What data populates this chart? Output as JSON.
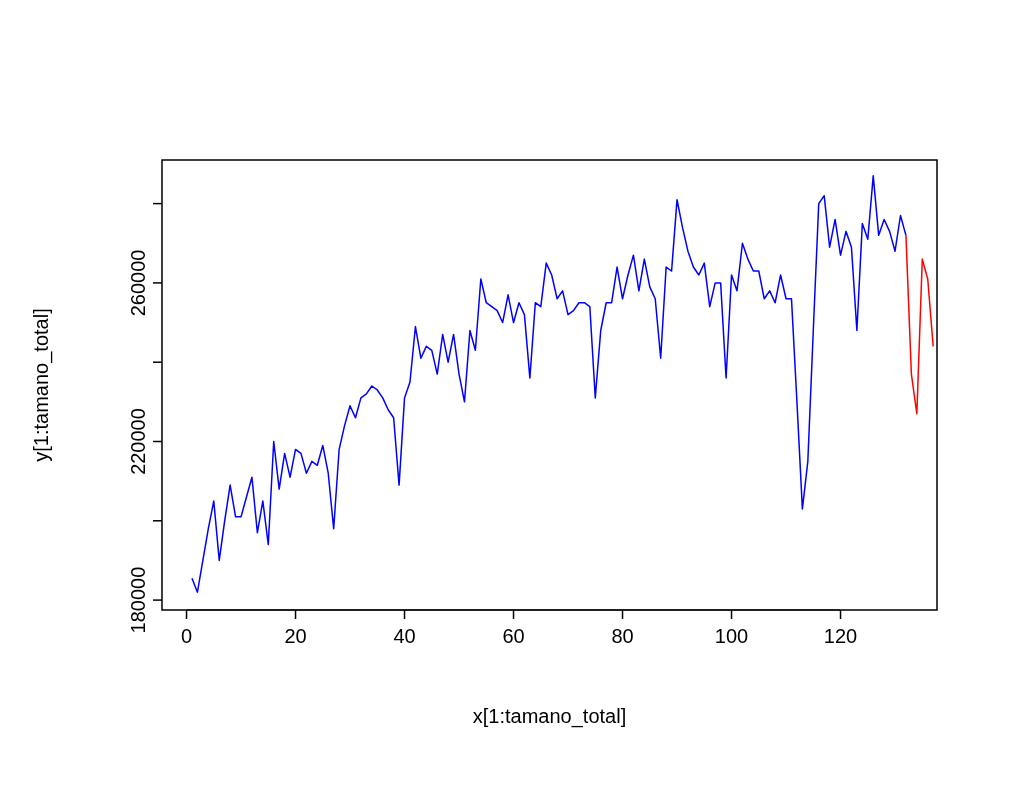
{
  "chart_data": {
    "type": "line",
    "xlabel": "x[1:tamano_total]",
    "ylabel": "y[1:tamano_total]",
    "xlim": [
      -4.5,
      137.7
    ],
    "ylim": [
      177500,
      291000
    ],
    "xticks": [
      0,
      20,
      40,
      60,
      80,
      100,
      120
    ],
    "yticks": [
      180000,
      {
        "value": 200000,
        "label": null
      },
      220000,
      {
        "value": 240000,
        "label": null
      },
      260000,
      {
        "value": 280000,
        "label": null
      }
    ],
    "grid": false,
    "series": [
      {
        "color": "#0000ff",
        "x": [
          1,
          2,
          3,
          4,
          5,
          6,
          7,
          8,
          9,
          10,
          11,
          12,
          13,
          14,
          15,
          16,
          17,
          18,
          19,
          20,
          21,
          22,
          23,
          24,
          25,
          26,
          27,
          28,
          29,
          30,
          31,
          32,
          33,
          34,
          35,
          36,
          37,
          38,
          39,
          40,
          41,
          42,
          43,
          44,
          45,
          46,
          47,
          48,
          49,
          50,
          51,
          52,
          53,
          54,
          55,
          56,
          57,
          58,
          59,
          60,
          61,
          62,
          63,
          64,
          65,
          66,
          67,
          68,
          69,
          70,
          71,
          72,
          73,
          74,
          75,
          76,
          77,
          78,
          79,
          80,
          81,
          82,
          83,
          84,
          85,
          86,
          87,
          88,
          89,
          90,
          91,
          92,
          93,
          94,
          95,
          96,
          97,
          98,
          99,
          100,
          101,
          102,
          103,
          104,
          105,
          106,
          107,
          108,
          109,
          110,
          111,
          112,
          113,
          114,
          115,
          116,
          117,
          118,
          119,
          120,
          121,
          122,
          123,
          124,
          125,
          126,
          127,
          128,
          129,
          130,
          131,
          132
        ],
        "values": [
          185500,
          182000,
          190000,
          198000,
          205000,
          190000,
          200000,
          209000,
          201000,
          201000,
          206000,
          211000,
          197000,
          205000,
          194000,
          220000,
          208000,
          217000,
          211000,
          218000,
          217000,
          212000,
          215000,
          214000,
          219000,
          212000,
          198000,
          218000,
          224000,
          229000,
          226000,
          231000,
          232000,
          234000,
          233000,
          231000,
          228000,
          226000,
          209000,
          231000,
          235000,
          249000,
          241000,
          244000,
          243000,
          237000,
          247000,
          240000,
          247000,
          237000,
          230000,
          248000,
          243000,
          261000,
          255000,
          254000,
          253000,
          250000,
          257000,
          250000,
          255000,
          252000,
          236000,
          255000,
          254000,
          265000,
          262000,
          256000,
          258000,
          252000,
          253000,
          255000,
          255000,
          254000,
          231000,
          248000,
          255000,
          255000,
          264000,
          256000,
          262000,
          267000,
          258000,
          266000,
          259000,
          256000,
          241000,
          264000,
          263000,
          281000,
          274000,
          268000,
          264000,
          262000,
          265000,
          254000,
          260000,
          260000,
          236000,
          262000,
          258000,
          270000,
          266000,
          263000,
          263000,
          256000,
          258000,
          255000,
          262000,
          256000,
          256000,
          230000,
          203000,
          215000,
          248000,
          280000,
          282000,
          269000,
          276000,
          267000,
          273000,
          269000,
          248000,
          275000,
          271000,
          287000,
          272000,
          276000,
          273000,
          268000,
          277000,
          272000
        ]
      },
      {
        "color": "#ff0000",
        "x": [
          132,
          133,
          134,
          135,
          136,
          137
        ],
        "values": [
          272000,
          237000,
          227000,
          266000,
          261000,
          244000
        ]
      }
    ]
  }
}
